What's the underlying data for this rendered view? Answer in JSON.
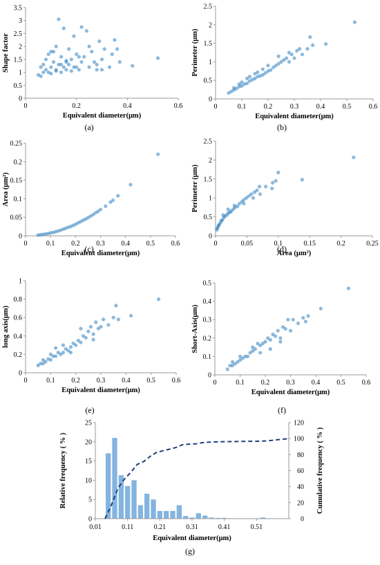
{
  "chart_data": [
    {
      "id": "a",
      "type": "scatter",
      "panel_label": "(a)",
      "xlabel": "Equivalent diameter(μm)",
      "ylabel": "Shape factor",
      "xlim": [
        0,
        0.6
      ],
      "ylim": [
        0,
        3.5
      ],
      "xticks": [
        "0",
        "0.2",
        "0.4",
        "0.6"
      ],
      "xtick_values": [
        0,
        0.2,
        0.4,
        0.6
      ],
      "yticks": [
        "0",
        "0.5",
        "1",
        "1.5",
        "2",
        "2.5",
        "3",
        "3.5"
      ],
      "ytick_values": [
        0,
        0.5,
        1,
        1.5,
        2,
        2.5,
        3,
        3.5
      ],
      "x": [
        0.05,
        0.06,
        0.06,
        0.07,
        0.07,
        0.08,
        0.08,
        0.09,
        0.09,
        0.1,
        0.1,
        0.11,
        0.11,
        0.12,
        0.12,
        0.13,
        0.13,
        0.14,
        0.14,
        0.15,
        0.15,
        0.16,
        0.16,
        0.17,
        0.17,
        0.18,
        0.18,
        0.19,
        0.2,
        0.2,
        0.21,
        0.22,
        0.22,
        0.23,
        0.24,
        0.25,
        0.26,
        0.27,
        0.28,
        0.29,
        0.3,
        0.31,
        0.33,
        0.35,
        0.37,
        0.42,
        0.52,
        0.1,
        0.12,
        0.14,
        0.16,
        0.19,
        0.21,
        0.25,
        0.28,
        0.3,
        0.34,
        0.36
      ],
      "y": [
        0.9,
        1.2,
        0.85,
        1.3,
        1.0,
        1.1,
        1.5,
        1.0,
        1.7,
        1.2,
        0.95,
        1.4,
        1.8,
        1.1,
        2.0,
        1.3,
        3.05,
        1.0,
        1.6,
        1.2,
        2.7,
        1.4,
        1.1,
        1.9,
        1.3,
        1.5,
        1.05,
        2.4,
        1.2,
        1.7,
        1.1,
        2.75,
        1.4,
        1.6,
        2.6,
        1.2,
        1.8,
        1.4,
        1.1,
        2.2,
        1.5,
        1.9,
        1.2,
        2.25,
        1.4,
        1.25,
        1.55,
        1.8,
        1.05,
        1.3,
        1.45,
        1.2,
        1.6,
        2.0,
        1.3,
        1.1,
        1.7,
        1.9
      ]
    },
    {
      "id": "b",
      "type": "scatter",
      "panel_label": "(b)",
      "xlabel": "Equivalent diameter(μm)",
      "ylabel": "Perimeter (μm)",
      "xlim": [
        0,
        0.6
      ],
      "ylim": [
        0,
        2.5
      ],
      "xticks": [
        "0",
        "0.1",
        "0.2",
        "0.3",
        "0.4",
        "0.5",
        "0.6"
      ],
      "xtick_values": [
        0,
        0.1,
        0.2,
        0.3,
        0.4,
        0.5,
        0.6
      ],
      "yticks": [
        "0",
        "0.5",
        "1",
        "1.5",
        "2",
        "2.5"
      ],
      "ytick_values": [
        0,
        0.5,
        1,
        1.5,
        2,
        2.5
      ],
      "x": [
        0.05,
        0.06,
        0.07,
        0.07,
        0.08,
        0.09,
        0.1,
        0.1,
        0.11,
        0.12,
        0.12,
        0.13,
        0.14,
        0.15,
        0.15,
        0.16,
        0.17,
        0.18,
        0.18,
        0.19,
        0.2,
        0.21,
        0.22,
        0.23,
        0.24,
        0.25,
        0.26,
        0.27,
        0.28,
        0.29,
        0.3,
        0.31,
        0.33,
        0.35,
        0.36,
        0.37,
        0.42,
        0.53,
        0.09,
        0.13,
        0.16,
        0.2,
        0.24,
        0.28,
        0.32
      ],
      "y": [
        0.16,
        0.2,
        0.24,
        0.3,
        0.28,
        0.33,
        0.35,
        0.45,
        0.4,
        0.42,
        0.55,
        0.48,
        0.52,
        0.55,
        0.68,
        0.6,
        0.62,
        0.65,
        0.8,
        0.7,
        0.75,
        0.78,
        0.85,
        0.9,
        0.95,
        1.0,
        1.05,
        1.1,
        1.0,
        1.2,
        1.1,
        1.3,
        1.2,
        1.35,
        1.67,
        1.45,
        1.48,
        2.07,
        0.4,
        0.6,
        0.72,
        0.9,
        1.15,
        1.25,
        1.35
      ]
    },
    {
      "id": "c",
      "type": "scatter",
      "panel_label": "(c)",
      "xlabel": "Equivalent diameter(μm)",
      "ylabel": "Area (μm²)",
      "xlim": [
        0,
        0.6
      ],
      "ylim": [
        0,
        0.25
      ],
      "xticks": [
        "0",
        "0.1",
        "0.2",
        "0.3",
        "0.4",
        "0.5",
        "0.6"
      ],
      "xtick_values": [
        0,
        0.1,
        0.2,
        0.3,
        0.4,
        0.5,
        0.6
      ],
      "yticks": [
        "0",
        "0.05",
        "0.1",
        "0.15",
        "0.2",
        "0.25"
      ],
      "ytick_values": [
        0,
        0.05,
        0.1,
        0.15,
        0.2,
        0.25
      ],
      "x": [
        0.05,
        0.06,
        0.07,
        0.08,
        0.09,
        0.1,
        0.11,
        0.12,
        0.13,
        0.14,
        0.15,
        0.16,
        0.17,
        0.18,
        0.19,
        0.2,
        0.21,
        0.22,
        0.23,
        0.24,
        0.25,
        0.26,
        0.27,
        0.28,
        0.29,
        0.3,
        0.32,
        0.34,
        0.35,
        0.37,
        0.42,
        0.53
      ],
      "y": [
        0.002,
        0.003,
        0.004,
        0.005,
        0.006,
        0.008,
        0.009,
        0.011,
        0.013,
        0.015,
        0.018,
        0.02,
        0.023,
        0.025,
        0.028,
        0.031,
        0.035,
        0.038,
        0.042,
        0.045,
        0.049,
        0.053,
        0.057,
        0.062,
        0.066,
        0.071,
        0.08,
        0.091,
        0.096,
        0.108,
        0.138,
        0.22
      ]
    },
    {
      "id": "d",
      "type": "scatter",
      "panel_label": "(d)",
      "xlabel": "Area (μm²)",
      "ylabel": "Perimeter (μm)",
      "xlim": [
        0,
        0.25
      ],
      "ylim": [
        0,
        2.5
      ],
      "xticks": [
        "0",
        "0.05",
        "0.1",
        "0.15",
        "0.2",
        "0.25"
      ],
      "xtick_values": [
        0,
        0.05,
        0.1,
        0.15,
        0.2,
        0.25
      ],
      "yticks": [
        "0",
        "0.5",
        "1",
        "1.5",
        "2",
        "2.5"
      ],
      "ytick_values": [
        0,
        0.5,
        1,
        1.5,
        2,
        2.5
      ],
      "x": [
        0.002,
        0.003,
        0.004,
        0.005,
        0.006,
        0.008,
        0.009,
        0.011,
        0.013,
        0.015,
        0.018,
        0.02,
        0.023,
        0.025,
        0.028,
        0.031,
        0.035,
        0.038,
        0.042,
        0.045,
        0.049,
        0.053,
        0.057,
        0.062,
        0.066,
        0.071,
        0.08,
        0.091,
        0.096,
        0.1,
        0.138,
        0.22,
        0.012,
        0.02,
        0.03,
        0.045,
        0.06,
        0.07,
        0.09
      ],
      "y": [
        0.16,
        0.2,
        0.24,
        0.28,
        0.3,
        0.35,
        0.4,
        0.42,
        0.48,
        0.52,
        0.55,
        0.6,
        0.62,
        0.65,
        0.7,
        0.75,
        0.78,
        0.85,
        0.9,
        0.95,
        1.0,
        1.05,
        1.1,
        1.15,
        1.2,
        1.1,
        1.3,
        1.4,
        1.45,
        1.67,
        1.48,
        2.07,
        0.55,
        0.7,
        0.8,
        0.85,
        1.0,
        1.3,
        1.25
      ]
    },
    {
      "id": "e",
      "type": "scatter",
      "panel_label": "(e)",
      "xlabel": "Equivalent diameter(μm)",
      "ylabel": "long axis(μm)",
      "xlim": [
        0,
        0.6
      ],
      "ylim": [
        0,
        1
      ],
      "xticks": [
        "0",
        "0.1",
        "0.2",
        "0.3",
        "0.4",
        "0.5",
        "0.6"
      ],
      "xtick_values": [
        0,
        0.1,
        0.2,
        0.3,
        0.4,
        0.5,
        0.6
      ],
      "yticks": [
        "0",
        "0.2",
        "0.4",
        "0.6",
        "0.8",
        "1"
      ],
      "ytick_values": [
        0,
        0.2,
        0.4,
        0.6,
        0.8,
        1
      ],
      "x": [
        0.05,
        0.06,
        0.07,
        0.07,
        0.08,
        0.09,
        0.1,
        0.1,
        0.11,
        0.12,
        0.13,
        0.14,
        0.15,
        0.15,
        0.16,
        0.17,
        0.18,
        0.19,
        0.2,
        0.21,
        0.22,
        0.23,
        0.24,
        0.25,
        0.26,
        0.27,
        0.28,
        0.29,
        0.3,
        0.31,
        0.33,
        0.35,
        0.36,
        0.37,
        0.42,
        0.53,
        0.12,
        0.18,
        0.22,
        0.27
      ],
      "y": [
        0.08,
        0.1,
        0.1,
        0.14,
        0.12,
        0.15,
        0.14,
        0.2,
        0.18,
        0.18,
        0.22,
        0.2,
        0.22,
        0.3,
        0.26,
        0.24,
        0.28,
        0.32,
        0.3,
        0.35,
        0.33,
        0.4,
        0.38,
        0.45,
        0.5,
        0.42,
        0.55,
        0.48,
        0.5,
        0.58,
        0.52,
        0.6,
        0.73,
        0.58,
        0.62,
        0.8,
        0.27,
        0.22,
        0.48,
        0.36
      ]
    },
    {
      "id": "f",
      "type": "scatter",
      "panel_label": "(f)",
      "xlabel": "Equivalent diameter(μm)",
      "ylabel": "Short-Axis(μm)",
      "xlim": [
        0,
        0.6
      ],
      "ylim": [
        0,
        0.5
      ],
      "xticks": [
        "0",
        "0.1",
        "0.2",
        "0.3",
        "0.4",
        "0.5",
        "0.6"
      ],
      "xtick_values": [
        0,
        0.1,
        0.2,
        0.3,
        0.4,
        0.5,
        0.6
      ],
      "yticks": [
        "0",
        "0.1",
        "0.2",
        "0.3",
        "0.4",
        "0.5"
      ],
      "ytick_values": [
        0,
        0.1,
        0.2,
        0.3,
        0.4,
        0.5
      ],
      "x": [
        0.05,
        0.06,
        0.07,
        0.07,
        0.08,
        0.09,
        0.1,
        0.1,
        0.11,
        0.12,
        0.13,
        0.14,
        0.15,
        0.15,
        0.16,
        0.17,
        0.18,
        0.19,
        0.2,
        0.21,
        0.22,
        0.23,
        0.24,
        0.25,
        0.26,
        0.27,
        0.28,
        0.29,
        0.3,
        0.31,
        0.33,
        0.35,
        0.36,
        0.37,
        0.42,
        0.53,
        0.18,
        0.22,
        0.26
      ],
      "y": [
        0.03,
        0.05,
        0.05,
        0.07,
        0.06,
        0.07,
        0.08,
        0.1,
        0.09,
        0.1,
        0.1,
        0.12,
        0.13,
        0.15,
        0.14,
        0.17,
        0.16,
        0.17,
        0.18,
        0.2,
        0.19,
        0.22,
        0.21,
        0.24,
        0.2,
        0.26,
        0.25,
        0.3,
        0.24,
        0.3,
        0.28,
        0.31,
        0.29,
        0.32,
        0.36,
        0.47,
        0.12,
        0.14,
        0.18
      ]
    },
    {
      "id": "g",
      "type": "bar+line",
      "panel_label": "(g)",
      "xlabel": "Equivalent diameter(μm)",
      "ylabel": "Relative frequency ( % )",
      "y2label": "Cumulative frequency ( % )",
      "xlim": [
        0.01,
        0.61
      ],
      "ylim": [
        0,
        25
      ],
      "y2lim": [
        0,
        120
      ],
      "xticks": [
        "0.01",
        "0.11",
        "0.21",
        "0.31",
        "0.41",
        "0.51"
      ],
      "xtick_values": [
        0.01,
        0.11,
        0.21,
        0.31,
        0.41,
        0.51
      ],
      "yticks": [
        "0",
        "5",
        "10",
        "15",
        "20",
        "25"
      ],
      "ytick_values": [
        0,
        5,
        10,
        15,
        20,
        25
      ],
      "y2ticks": [
        "0",
        "20",
        "40",
        "60",
        "80",
        "100",
        "120"
      ],
      "y2tick_values": [
        0,
        20,
        40,
        60,
        80,
        100,
        120
      ],
      "bins": [
        0.05,
        0.07,
        0.09,
        0.11,
        0.13,
        0.15,
        0.17,
        0.19,
        0.21,
        0.23,
        0.25,
        0.27,
        0.29,
        0.31,
        0.33,
        0.35,
        0.37,
        0.39,
        0.41,
        0.43,
        0.45,
        0.47,
        0.49,
        0.51,
        0.53
      ],
      "values": [
        17,
        21,
        11.3,
        8.5,
        10,
        3.5,
        6.5,
        5,
        2,
        2,
        2,
        3.5,
        0.7,
        0.3,
        1.4,
        0.8,
        0.3,
        0.2,
        0.2,
        0.1,
        0.1,
        0.1,
        0.1,
        0.1,
        0.3
      ],
      "cumulative": [
        0,
        17,
        38,
        49.3,
        57.8,
        67.8,
        71.3,
        77.8,
        82.8,
        84.8,
        86.8,
        88.8,
        92.3,
        93,
        93.3,
        94.7,
        95.5,
        95.8,
        96,
        96.2,
        96.3,
        96.4,
        96.5,
        96.6,
        96.7,
        97
      ]
    }
  ]
}
